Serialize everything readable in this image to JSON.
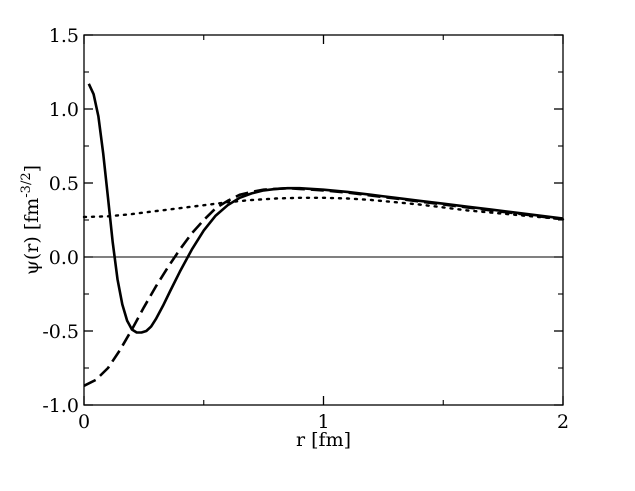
{
  "chart_data": {
    "type": "line",
    "title": "",
    "xlabel": "r [fm]",
    "ylabel": "ψ(r) [fm",
    "ylabel_sup": "-3/2",
    "ylabel_end": "]",
    "xlim": [
      0,
      2
    ],
    "ylim": [
      -1.0,
      1.5
    ],
    "xticks": [
      0,
      1,
      2
    ],
    "xtick_labels": [
      "0",
      "1",
      "2"
    ],
    "yticks": [
      -1.0,
      -0.5,
      0.0,
      0.5,
      1.0,
      1.5
    ],
    "ytick_labels": [
      "-1.0",
      "-0.5",
      "0.0",
      "0.5",
      "1.0",
      "1.5"
    ],
    "grid": false,
    "legend": "none",
    "reference_line": {
      "y": 0.0
    },
    "series": [
      {
        "style": "solid",
        "x": [
          0.02,
          0.04,
          0.06,
          0.08,
          0.1,
          0.12,
          0.14,
          0.16,
          0.18,
          0.2,
          0.22,
          0.24,
          0.26,
          0.28,
          0.3,
          0.33,
          0.36,
          0.4,
          0.45,
          0.5,
          0.55,
          0.6,
          0.65,
          0.7,
          0.75,
          0.8,
          0.85,
          0.9,
          0.95,
          1.0,
          1.1,
          1.2,
          1.3,
          1.4,
          1.5,
          1.6,
          1.7,
          1.8,
          1.9,
          2.0
        ],
        "y": [
          1.17,
          1.1,
          0.95,
          0.7,
          0.4,
          0.1,
          -0.15,
          -0.32,
          -0.43,
          -0.49,
          -0.51,
          -0.51,
          -0.5,
          -0.47,
          -0.42,
          -0.33,
          -0.23,
          -0.1,
          0.05,
          0.18,
          0.28,
          0.35,
          0.4,
          0.43,
          0.45,
          0.46,
          0.465,
          0.465,
          0.46,
          0.455,
          0.44,
          0.42,
          0.4,
          0.38,
          0.36,
          0.34,
          0.32,
          0.3,
          0.28,
          0.26
        ]
      },
      {
        "style": "dashed",
        "x": [
          0.0,
          0.05,
          0.1,
          0.15,
          0.2,
          0.25,
          0.3,
          0.35,
          0.4,
          0.45,
          0.5,
          0.55,
          0.6,
          0.65,
          0.7,
          0.75,
          0.8,
          0.85,
          0.9,
          1.0,
          1.1,
          1.2,
          1.3,
          1.4,
          1.5,
          1.6,
          1.7,
          1.8,
          1.9,
          2.0
        ],
        "y": [
          -0.87,
          -0.83,
          -0.75,
          -0.63,
          -0.49,
          -0.34,
          -0.2,
          -0.07,
          0.05,
          0.16,
          0.25,
          0.33,
          0.38,
          0.42,
          0.44,
          0.455,
          0.46,
          0.465,
          0.46,
          0.45,
          0.435,
          0.415,
          0.395,
          0.375,
          0.355,
          0.335,
          0.315,
          0.295,
          0.275,
          0.255
        ]
      },
      {
        "style": "dotted",
        "x": [
          0.0,
          0.1,
          0.2,
          0.3,
          0.4,
          0.5,
          0.6,
          0.7,
          0.8,
          0.9,
          1.0,
          1.1,
          1.2,
          1.3,
          1.4,
          1.5,
          1.6,
          1.7,
          1.8,
          1.9,
          2.0
        ],
        "y": [
          0.27,
          0.275,
          0.29,
          0.31,
          0.33,
          0.35,
          0.37,
          0.385,
          0.395,
          0.4,
          0.4,
          0.395,
          0.385,
          0.37,
          0.355,
          0.335,
          0.315,
          0.3,
          0.285,
          0.27,
          0.255
        ]
      }
    ]
  }
}
